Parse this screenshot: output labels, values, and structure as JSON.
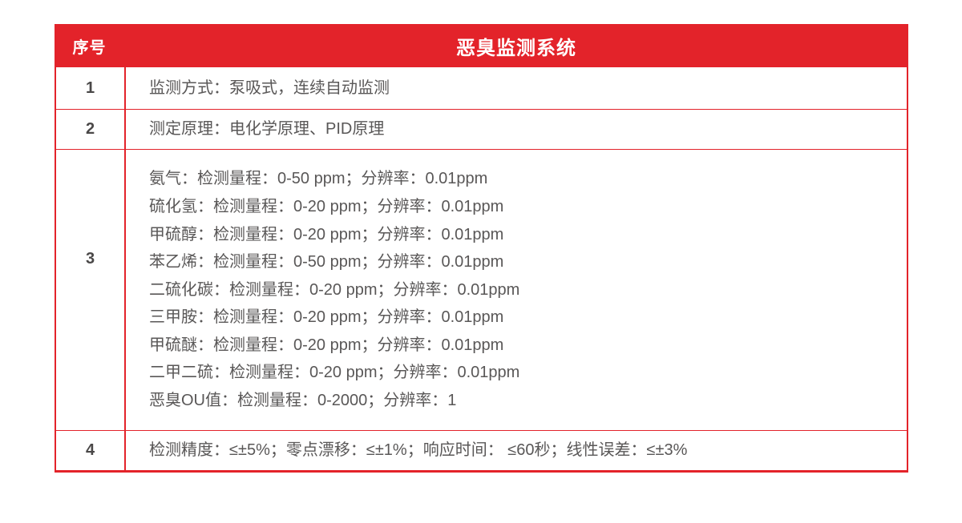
{
  "colors": {
    "accent_red": "#e3232a",
    "header_text": "#ffffff",
    "body_text": "#595757",
    "number_text": "#4a4848",
    "page_background": "#ffffff"
  },
  "table": {
    "header": {
      "serial_label": "序号",
      "title": "恶臭监测系统"
    },
    "rows": [
      {
        "num": "1",
        "lines": [
          "监测方式：泵吸式，连续自动监测"
        ]
      },
      {
        "num": "2",
        "lines": [
          "测定原理：电化学原理、PID原理"
        ]
      },
      {
        "num": "3",
        "lines": [
          "氨气：检测量程：0-50 ppm；分辨率：0.01ppm",
          "硫化氢：检测量程：0-20 ppm；分辨率：0.01ppm",
          "甲硫醇：检测量程：0-20 ppm；分辨率：0.01ppm",
          "苯乙烯：检测量程：0-50 ppm；分辨率：0.01ppm",
          "二硫化碳：检测量程：0-20 ppm；分辨率：0.01ppm",
          "三甲胺：检测量程：0-20 ppm；分辨率：0.01ppm",
          "甲硫醚：检测量程：0-20 ppm；分辨率：0.01ppm",
          "二甲二硫：检测量程：0-20 ppm；分辨率：0.01ppm",
          "恶臭OU值：检测量程：0-2000；分辨率：1"
        ]
      },
      {
        "num": "4",
        "lines": [
          "检测精度：≤±5%；零点漂移：≤±1%；响应时间： ≤60秒；线性误差：≤±3%"
        ]
      }
    ]
  }
}
